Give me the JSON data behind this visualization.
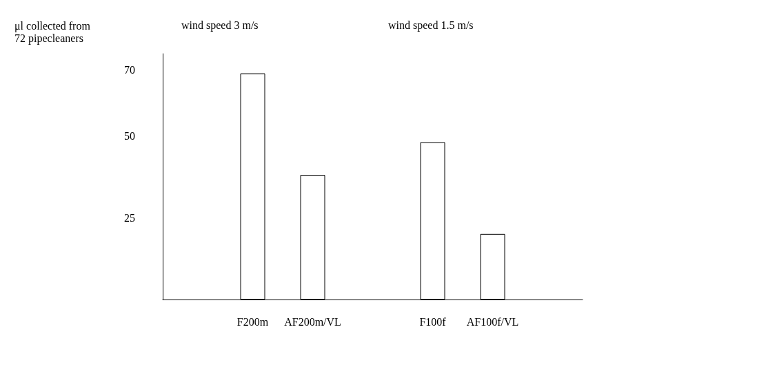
{
  "chart_data": {
    "type": "bar",
    "ylabel": "μl collected from\n72 pipecleaners",
    "annotations": [
      "wind speed 3 m/s",
      "wind speed 1.5 m/s"
    ],
    "categories": [
      null,
      "F200m",
      "AF200m/VL",
      null,
      "F100f",
      "AF100f/VL",
      null
    ],
    "values": [
      null,
      69,
      38,
      null,
      48,
      20,
      null
    ],
    "color": "#ffffff",
    "ylim": [
      0,
      75
    ],
    "yticks": [
      25,
      50,
      70
    ],
    "grid": false
  }
}
